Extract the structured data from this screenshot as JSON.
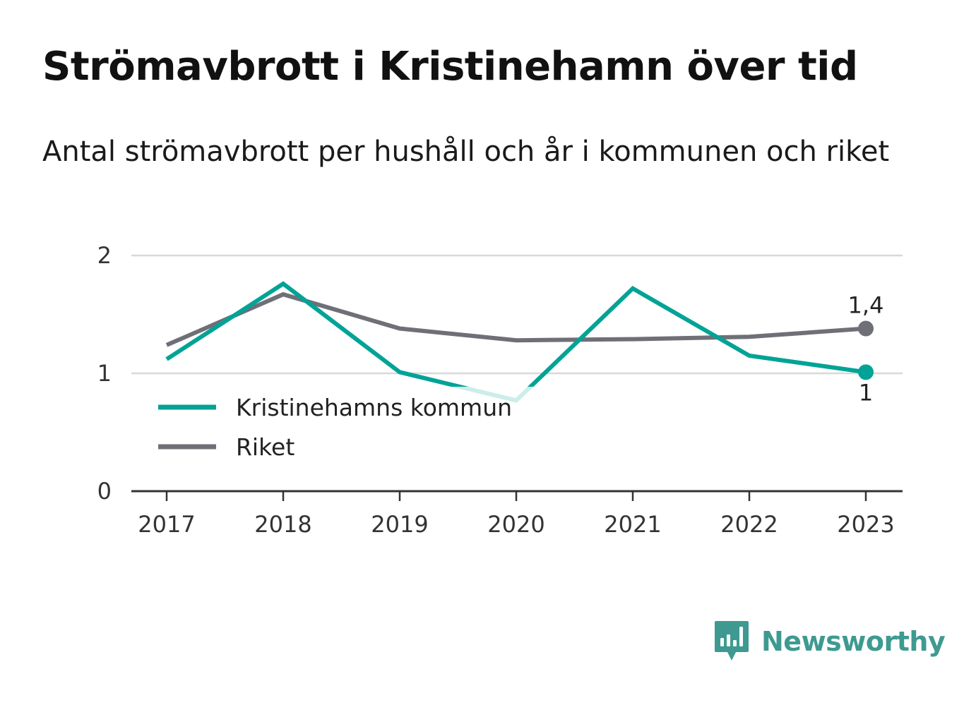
{
  "title": "Strömavbrott i Kristinehamn över tid",
  "subtitle": "Antal strömavbrott per hushåll och år i kommunen och riket",
  "brand": {
    "name": "Newsworthy",
    "logo_icon": "newsworthy-chart-bubble-icon"
  },
  "colors": {
    "kommun": "#00a396",
    "riket": "#6f6f77",
    "grid": "#d8d8d8",
    "axis": "#333333"
  },
  "chart_data": {
    "type": "line",
    "x": [
      "2017",
      "2018",
      "2019",
      "2020",
      "2021",
      "2022",
      "2023"
    ],
    "ylim": [
      0,
      2
    ],
    "yticks": [
      0,
      1,
      2
    ],
    "ytick_labels": [
      "0",
      "1",
      "2"
    ],
    "grid": true,
    "legend": "bottom-left",
    "series": [
      {
        "name": "Kristinehamns kommun",
        "values": [
          1.12,
          1.76,
          1.01,
          0.77,
          1.72,
          1.15,
          1.01
        ],
        "end_label": "1"
      },
      {
        "name": "Riket",
        "values": [
          1.24,
          1.67,
          1.38,
          1.28,
          1.29,
          1.31,
          1.38
        ],
        "end_label": "1,4"
      }
    ]
  }
}
